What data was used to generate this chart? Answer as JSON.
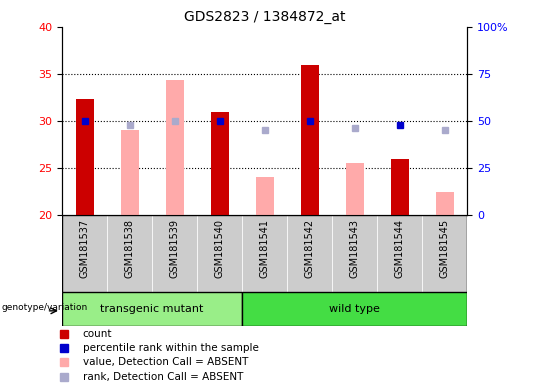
{
  "title": "GDS2823 / 1384872_at",
  "samples": [
    "GSM181537",
    "GSM181538",
    "GSM181539",
    "GSM181540",
    "GSM181541",
    "GSM181542",
    "GSM181543",
    "GSM181544",
    "GSM181545"
  ],
  "red_bars": {
    "indices": [
      0,
      3,
      5,
      7
    ],
    "values": [
      32.3,
      31.0,
      36.0,
      26.0
    ]
  },
  "blue_squares": {
    "indices": [
      0,
      3,
      5,
      7
    ],
    "values": [
      50.0,
      50.0,
      50.0,
      48.0
    ]
  },
  "pink_bars": {
    "indices": [
      1,
      2,
      4,
      6,
      8
    ],
    "values": [
      29.0,
      34.4,
      24.0,
      25.5,
      22.5
    ]
  },
  "light_blue_squares": {
    "indices": [
      1,
      2,
      4,
      6,
      8
    ],
    "values": [
      48.0,
      50.0,
      45.0,
      46.0,
      45.0
    ]
  },
  "ylim_left": [
    20,
    40
  ],
  "ylim_right": [
    0,
    100
  ],
  "yticks_left": [
    20,
    25,
    30,
    35,
    40
  ],
  "yticks_right": [
    0,
    25,
    50,
    75,
    100
  ],
  "ytick_labels_right": [
    "0",
    "25",
    "50",
    "75",
    "100%"
  ],
  "bar_width": 0.4,
  "red_color": "#cc0000",
  "pink_color": "#ffaaaa",
  "blue_color": "#0000cc",
  "light_blue_color": "#aaaacc",
  "plot_bg": "#ffffff",
  "xticklabel_bg": "#cccccc",
  "group1_color": "#99ee88",
  "group2_color": "#44dd44",
  "legend_items": [
    "count",
    "percentile rank within the sample",
    "value, Detection Call = ABSENT",
    "rank, Detection Call = ABSENT"
  ],
  "legend_colors": [
    "#cc0000",
    "#0000cc",
    "#ffaaaa",
    "#aaaacc"
  ],
  "transgenic_indices": [
    0,
    1,
    2,
    3
  ],
  "wildtype_indices": [
    4,
    5,
    6,
    7,
    8
  ]
}
